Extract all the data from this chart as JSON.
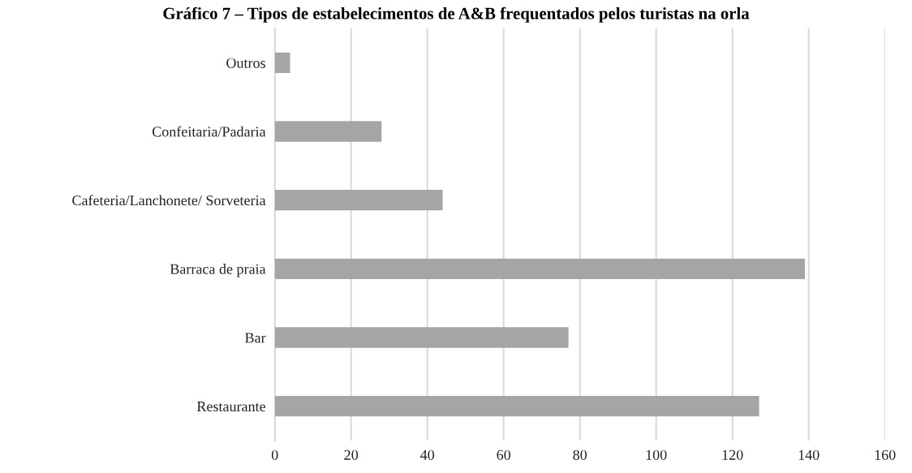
{
  "chart_data": {
    "type": "bar",
    "orientation": "horizontal",
    "title": "Gráfico 7 – Tipos de estabelecimentos de A&B frequentados pelos turistas na orla",
    "categories": [
      "Outros",
      "Confeitaria/Padaria",
      "Cafeteria/Lanchonete/ Sorveteria",
      "Barraca de praia",
      "Bar",
      "Restaurante"
    ],
    "values": [
      4,
      28,
      44,
      139,
      77,
      127
    ],
    "color": "#a5a5a5",
    "xlim": [
      0,
      160
    ],
    "xticks": [
      0,
      20,
      40,
      60,
      80,
      100,
      120,
      140,
      160
    ],
    "grid": "x",
    "legend": false
  }
}
